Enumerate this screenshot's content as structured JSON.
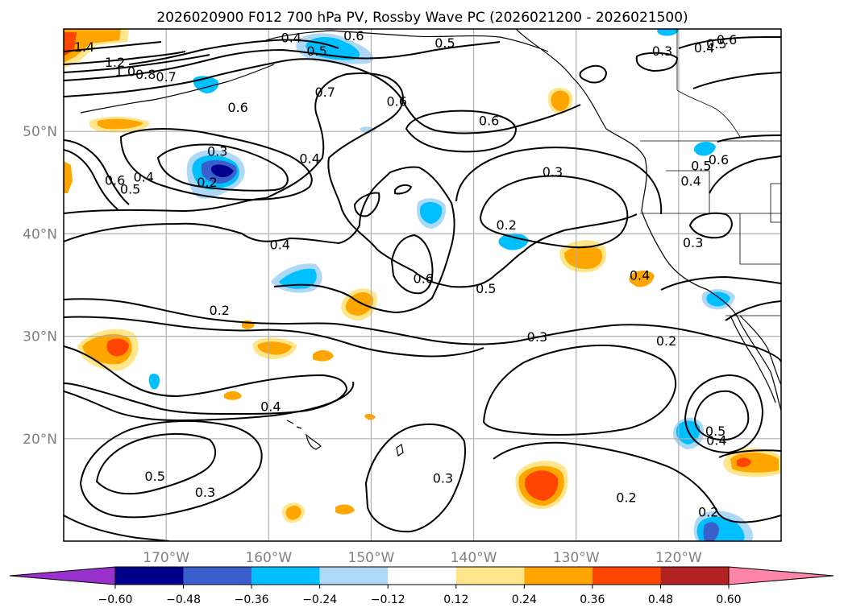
{
  "chart_data": {
    "type": "contour_map",
    "title": "2026020900 F012 700 hPa PV, Rossby Wave PC (2026021200 - 2026021500)",
    "x_axis": {
      "ticks": [
        -170,
        -160,
        -150,
        -140,
        -130,
        -120
      ],
      "tick_labels": [
        "170°W",
        "160°W",
        "150°W",
        "140°W",
        "130°W",
        "120°W"
      ],
      "range": [
        -180,
        -110
      ]
    },
    "y_axis": {
      "ticks": [
        20,
        30,
        40,
        50
      ],
      "tick_labels": [
        "20°N",
        "30°N",
        "40°N",
        "50°N"
      ],
      "range": [
        10,
        60
      ]
    },
    "colorbar": {
      "levels": [
        -0.6,
        -0.48,
        -0.36,
        -0.24,
        -0.12,
        0.12,
        0.24,
        0.36,
        0.48,
        0.6
      ],
      "tick_labels": [
        "−0.60",
        "−0.48",
        "−0.36",
        "−0.24",
        "−0.12",
        "0.12",
        "0.24",
        "0.36",
        "0.48",
        "0.60"
      ],
      "colors": [
        "#9932cc",
        "#00008b",
        "#3a5fcd",
        "#00bfff",
        "#add8f6",
        "#ffffff",
        "#ffe68a",
        "#ffa500",
        "#ff4500",
        "#b22222",
        "#ff85a8"
      ]
    },
    "contour_labels": [
      {
        "text": "1.4",
        "lon": -178,
        "lat": 58.2
      },
      {
        "text": "1.2",
        "lon": -175,
        "lat": 56.7
      },
      {
        "text": "1.0",
        "lon": -174,
        "lat": 55.8
      },
      {
        "text": "0.8",
        "lon": -172,
        "lat": 55.5
      },
      {
        "text": "0.7",
        "lon": -170,
        "lat": 55.3
      },
      {
        "text": "0.4",
        "lon": -157.8,
        "lat": 59.1
      },
      {
        "text": "0.5",
        "lon": -155.3,
        "lat": 57.8
      },
      {
        "text": "0.6",
        "lon": -151.7,
        "lat": 59.3
      },
      {
        "text": "0.7",
        "lon": -154.5,
        "lat": 53.8
      },
      {
        "text": "0.6",
        "lon": -163,
        "lat": 52.3
      },
      {
        "text": "0.5",
        "lon": -142.8,
        "lat": 58.6
      },
      {
        "text": "0.6",
        "lon": -147.5,
        "lat": 52.9
      },
      {
        "text": "0.6",
        "lon": -138.5,
        "lat": 51
      },
      {
        "text": "0.3",
        "lon": -165,
        "lat": 48
      },
      {
        "text": "0.2",
        "lon": -166,
        "lat": 45
      },
      {
        "text": "0.4",
        "lon": -156,
        "lat": 47.3
      },
      {
        "text": "0.6",
        "lon": -175,
        "lat": 45.2
      },
      {
        "text": "0.5",
        "lon": -173.5,
        "lat": 44.3
      },
      {
        "text": "0.4",
        "lon": -172.2,
        "lat": 45.5
      },
      {
        "text": "0.3",
        "lon": -132.3,
        "lat": 46
      },
      {
        "text": "0.2",
        "lon": -136.8,
        "lat": 40.8
      },
      {
        "text": "0.4",
        "lon": -158.9,
        "lat": 38.9
      },
      {
        "text": "0.6",
        "lon": -144.9,
        "lat": 35.6
      },
      {
        "text": "0.5",
        "lon": -138.8,
        "lat": 34.6
      },
      {
        "text": "0.2",
        "lon": -164.8,
        "lat": 32.5
      },
      {
        "text": "0.3",
        "lon": -133.8,
        "lat": 29.9
      },
      {
        "text": "0.2",
        "lon": -121.2,
        "lat": 29.5
      },
      {
        "text": "0.4",
        "lon": -159.8,
        "lat": 23.1
      },
      {
        "text": "0.5",
        "lon": -171.1,
        "lat": 16.3
      },
      {
        "text": "0.3",
        "lon": -166.2,
        "lat": 14.7
      },
      {
        "text": "0.3",
        "lon": -143,
        "lat": 16.1
      },
      {
        "text": "0.2",
        "lon": -125.1,
        "lat": 14.2
      },
      {
        "text": "0.2",
        "lon": -117.1,
        "lat": 12.8
      },
      {
        "text": "0.5",
        "lon": -116.4,
        "lat": 20.7
      },
      {
        "text": "0.4",
        "lon": -116.3,
        "lat": 19.8
      },
      {
        "text": "0.3",
        "lon": -121.6,
        "lat": 57.8
      },
      {
        "text": "0.4",
        "lon": -117.5,
        "lat": 58.1
      },
      {
        "text": "0.5",
        "lon": -116.3,
        "lat": 58.5
      },
      {
        "text": "0.6",
        "lon": -115.3,
        "lat": 58.9
      },
      {
        "text": "0.5",
        "lon": -117.8,
        "lat": 46.6
      },
      {
        "text": "0.6",
        "lon": -116.1,
        "lat": 47.2
      },
      {
        "text": "0.4",
        "lon": -118.8,
        "lat": 45.1
      },
      {
        "text": "0.3",
        "lon": -118.6,
        "lat": 39.1
      },
      {
        "text": "0.4",
        "lon": -123.8,
        "lat": 35.9
      }
    ]
  }
}
